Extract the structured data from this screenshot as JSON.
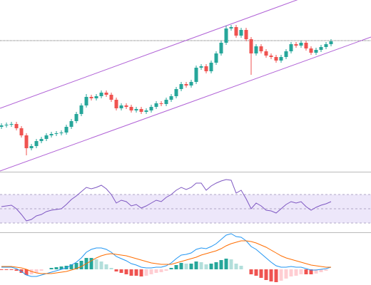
{
  "chart_data": [
    {
      "type": "candlestick",
      "open": [
        72,
        74,
        75,
        76,
        70,
        60,
        42,
        45,
        52,
        55,
        60,
        62,
        63,
        64,
        72,
        80,
        90,
        102,
        114,
        112,
        115,
        120,
        117,
        110,
        98,
        102,
        100,
        95,
        97,
        93,
        95,
        100,
        105,
        104,
        110,
        115,
        125,
        132,
        130,
        135,
        155,
        157,
        150,
        162,
        175,
        190,
        210,
        212,
        200,
        208,
        195,
        175,
        185,
        178,
        172,
        170,
        165,
        170,
        178,
        188,
        186,
        190,
        182,
        176,
        180,
        184,
        188
      ],
      "high": [
        77,
        78,
        79,
        79,
        73,
        63,
        48,
        55,
        58,
        63,
        65,
        66,
        67,
        75,
        83,
        93,
        105,
        118,
        117,
        118,
        123,
        123,
        120,
        113,
        105,
        105,
        103,
        100,
        100,
        98,
        103,
        108,
        108,
        113,
        118,
        128,
        135,
        135,
        138,
        158,
        160,
        160,
        165,
        178,
        193,
        214,
        215,
        215,
        211,
        211,
        198,
        188,
        188,
        181,
        175,
        173,
        173,
        181,
        191,
        191,
        193,
        193,
        185,
        183,
        187,
        191,
        195
      ],
      "low": [
        69,
        71,
        72,
        67,
        57,
        32,
        39,
        42,
        49,
        52,
        57,
        59,
        60,
        61,
        69,
        77,
        87,
        99,
        109,
        109,
        112,
        114,
        107,
        95,
        95,
        97,
        92,
        92,
        90,
        90,
        92,
        97,
        101,
        101,
        107,
        112,
        122,
        127,
        127,
        132,
        152,
        147,
        147,
        159,
        172,
        187,
        207,
        197,
        197,
        192,
        145,
        172,
        175,
        169,
        167,
        162,
        162,
        167,
        175,
        183,
        183,
        179,
        173,
        173,
        177,
        181,
        185
      ],
      "close": [
        74,
        75,
        76,
        70,
        60,
        42,
        45,
        52,
        55,
        60,
        62,
        63,
        64,
        72,
        80,
        90,
        102,
        114,
        112,
        115,
        120,
        117,
        110,
        98,
        102,
        100,
        95,
        97,
        93,
        95,
        100,
        105,
        104,
        110,
        115,
        125,
        132,
        130,
        135,
        155,
        157,
        150,
        162,
        175,
        190,
        210,
        212,
        200,
        208,
        195,
        175,
        185,
        178,
        172,
        170,
        165,
        170,
        178,
        188,
        186,
        190,
        182,
        176,
        180,
        184,
        188,
        192
      ],
      "up_color": "#26a69a",
      "down_color": "#ef5350",
      "ylim": [
        10,
        250
      ],
      "xlim": [
        -0.29,
        74
      ],
      "hline": 193,
      "hline_color": "#333333",
      "channel_color": "#b061d6",
      "channel": [
        {
          "x": [
            -0.29,
            74
          ],
          "y": [
            98,
            288
          ]
        },
        {
          "x": [
            -0.29,
            74
          ],
          "y": [
            10,
            198
          ]
        }
      ]
    },
    {
      "type": "line",
      "values": [
        53,
        54,
        55,
        50,
        42,
        33,
        35,
        40,
        42,
        46,
        48,
        49,
        50,
        56,
        63,
        68,
        74,
        80,
        78,
        80,
        83,
        78,
        70,
        58,
        62,
        60,
        54,
        56,
        51,
        54,
        58,
        62,
        60,
        66,
        70,
        76,
        80,
        77,
        80,
        86,
        86,
        76,
        82,
        86,
        89,
        91,
        90,
        72,
        76,
        64,
        50,
        58,
        54,
        48,
        47,
        44,
        50,
        56,
        60,
        58,
        60,
        53,
        48,
        52,
        55,
        57,
        60
      ],
      "color": "#7e57c2",
      "ylim": [
        18,
        100
      ],
      "xlim": [
        -0.29,
        74
      ],
      "levels": [
        30,
        50,
        70
      ],
      "band": [
        30,
        70
      ],
      "band_color": "#ede7fa"
    },
    {
      "type": "macd",
      "series": [
        {
          "name": "macd",
          "color": "#2196f3",
          "values": [
            3,
            3,
            3,
            1,
            -3,
            -8,
            -10,
            -10,
            -8,
            -6,
            -4,
            -2,
            0,
            2,
            6,
            10,
            16,
            24,
            28,
            30,
            30,
            28,
            24,
            18,
            15,
            12,
            8,
            6,
            3,
            2,
            2,
            3,
            3,
            5,
            9,
            15,
            20,
            21,
            23,
            28,
            30,
            29,
            32,
            36,
            42,
            48,
            50,
            46,
            45,
            40,
            32,
            28,
            22,
            16,
            10,
            5,
            3,
            3,
            4,
            3,
            3,
            1,
            -1,
            -1,
            0,
            1,
            3
          ]
        },
        {
          "name": "signal",
          "color": "#ff6d00",
          "values": [
            4,
            4,
            4,
            3,
            2,
            0,
            -3,
            -5,
            -6,
            -6,
            -6,
            -5,
            -4,
            -3,
            -1,
            1,
            4,
            8,
            12,
            16,
            19,
            21,
            22,
            21,
            20,
            19,
            17,
            15,
            13,
            11,
            9,
            8,
            7,
            7,
            7,
            9,
            11,
            13,
            15,
            17,
            20,
            22,
            24,
            26,
            29,
            33,
            36,
            38,
            40,
            40,
            39,
            37,
            34,
            31,
            27,
            23,
            19,
            16,
            14,
            12,
            10,
            8,
            6,
            5,
            4,
            3,
            3
          ]
        }
      ],
      "histogram": [
        -1,
        -1,
        -1,
        -2,
        -5,
        -8,
        -7,
        -5,
        -2,
        0,
        2,
        3,
        4,
        5,
        7,
        9,
        12,
        16,
        16,
        14,
        11,
        7,
        2,
        -3,
        -5,
        -7,
        -9,
        -9,
        -10,
        -9,
        -7,
        -5,
        -4,
        -2,
        2,
        6,
        9,
        8,
        8,
        11,
        10,
        7,
        8,
        10,
        13,
        15,
        14,
        8,
        5,
        0,
        -7,
        -9,
        -12,
        -15,
        -17,
        -18,
        -16,
        -13,
        -10,
        -9,
        -7,
        -7,
        -7,
        -6,
        -4,
        -2,
        0
      ],
      "histogram_colors": [
        "#26a69a",
        "#b2dfdb",
        "#ef5350",
        "#ffcdd2"
      ],
      "ylim": [
        -22,
        50
      ],
      "xlim": [
        -0.29,
        74
      ]
    }
  ]
}
